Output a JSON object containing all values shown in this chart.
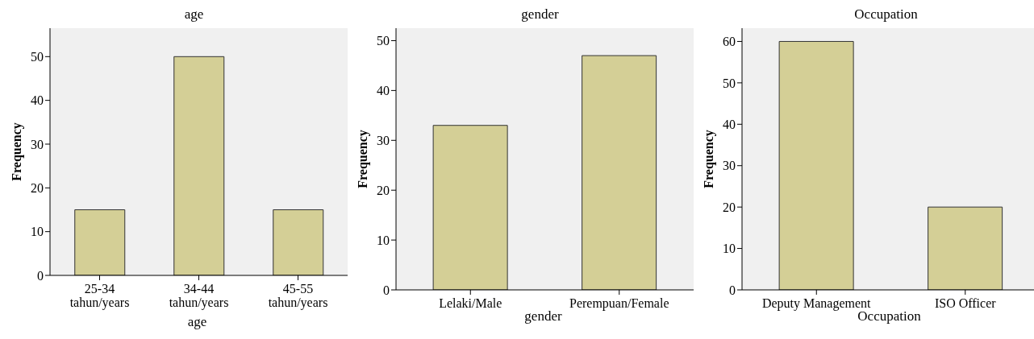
{
  "chart_data": [
    {
      "type": "bar",
      "title": "age",
      "xlabel": "age",
      "ylabel": "Frequency",
      "categories": [
        "25-34\ntahun/years",
        "34-44\ntahun/years",
        "45-55\ntahun/years"
      ],
      "values": [
        15,
        50,
        15
      ],
      "color": "#d4cf96",
      "ylim": [
        0,
        56.5
      ],
      "yticks": [
        0,
        10,
        20,
        30,
        40,
        50
      ]
    },
    {
      "type": "bar",
      "title": "gender",
      "xlabel": "gender",
      "ylabel": "Frequency",
      "categories": [
        "Lelaki/Male",
        "Perempuan/Female"
      ],
      "values": [
        33,
        47
      ],
      "color": "#d4cf96",
      "ylim": [
        0,
        52.5
      ],
      "yticks": [
        0,
        10,
        20,
        30,
        40,
        50
      ]
    },
    {
      "type": "bar",
      "title": "Occupation",
      "xlabel": "Occupation",
      "ylabel": "Frequency",
      "categories": [
        "Deputy Management",
        "ISO Officer"
      ],
      "values": [
        60,
        20
      ],
      "color": "#d4cf96",
      "ylim": [
        0,
        63.2
      ],
      "yticks": [
        0,
        10,
        20,
        30,
        40,
        50,
        60
      ]
    }
  ]
}
